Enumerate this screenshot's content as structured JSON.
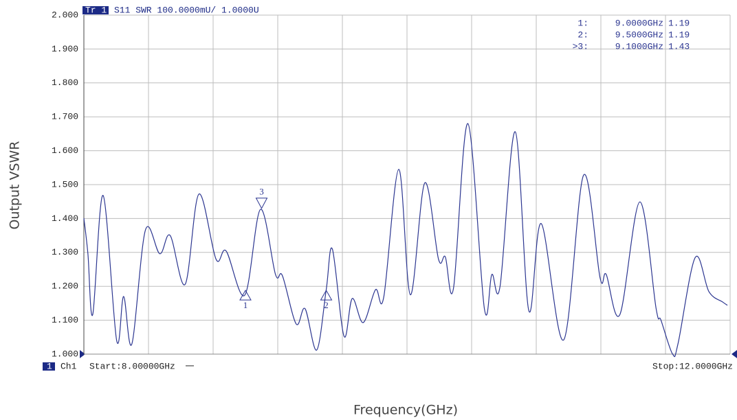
{
  "chart_data": {
    "type": "line",
    "header_trace": "Tr 1",
    "header": "S11 SWR 100.0000mU/ 1.0000U",
    "ylabel": "Output VSWR",
    "xlabel": "Frequency(GHz)",
    "channel_number": "1",
    "channel": "Ch1",
    "start_label": "Start:8.00000GHz",
    "stop_label": "Stop:12.0000GHz",
    "xlim": [
      8,
      12
    ],
    "xticks": [
      8,
      8.4,
      8.8,
      9.2,
      9.6,
      10,
      10.4,
      10.8,
      11.2,
      11.6,
      12
    ],
    "ylim": [
      1,
      2
    ],
    "yticks": [
      {
        "value": 1,
        "label": "1.000"
      },
      {
        "value": 1.1,
        "label": "1.100"
      },
      {
        "value": 1.2,
        "label": "1.200"
      },
      {
        "value": 1.3,
        "label": "1.300"
      },
      {
        "value": 1.4,
        "label": "1.400"
      },
      {
        "value": 1.5,
        "label": "1.500"
      },
      {
        "value": 1.6,
        "label": "1.600"
      },
      {
        "value": 1.7,
        "label": "1.700"
      },
      {
        "value": 1.8,
        "label": "1.800"
      },
      {
        "value": 1.9,
        "label": "1.900"
      },
      {
        "value": 2,
        "label": "2.000"
      }
    ],
    "grid": true,
    "series": [
      {
        "color": "#2b3590",
        "x": [
          8.0,
          8.025,
          8.055,
          8.119,
          8.203,
          8.246,
          8.297,
          8.381,
          8.47,
          8.534,
          8.627,
          8.712,
          8.818,
          8.881,
          8.996,
          9.093,
          9.186,
          9.229,
          9.314,
          9.369,
          9.441,
          9.5,
          9.538,
          9.61,
          9.661,
          9.729,
          9.805,
          9.856,
          9.949,
          10.021,
          10.11,
          10.195,
          10.237,
          10.288,
          10.377,
          10.479,
          10.525,
          10.576,
          10.67,
          10.754,
          10.831,
          10.97,
          11.093,
          11.195,
          11.233,
          11.318,
          11.441,
          11.542,
          11.572,
          11.644,
          11.678,
          11.784,
          11.869,
          11.953,
          11.983
        ],
        "values": [
          1.401,
          1.296,
          1.117,
          1.468,
          1.04,
          1.17,
          1.03,
          1.366,
          1.296,
          1.35,
          1.206,
          1.472,
          1.28,
          1.304,
          1.174,
          1.427,
          1.235,
          1.231,
          1.089,
          1.134,
          1.012,
          1.19,
          1.31,
          1.053,
          1.164,
          1.093,
          1.19,
          1.168,
          1.545,
          1.175,
          1.505,
          1.28,
          1.287,
          1.195,
          1.68,
          1.134,
          1.235,
          1.2,
          1.656,
          1.128,
          1.385,
          1.042,
          1.528,
          1.225,
          1.235,
          1.117,
          1.449,
          1.134,
          1.1,
          1.0,
          1.032,
          1.285,
          1.184,
          1.154,
          1.144
        ]
      }
    ],
    "markers": [
      {
        "name": "1",
        "id_label": "1:",
        "x": 9,
        "x_label": "9.0000GHz",
        "value": 1.19
      },
      {
        "name": "2",
        "id_label": "2:",
        "x": 9.5,
        "x_label": "9.5000GHz",
        "value": 1.19
      },
      {
        "name": "3",
        "id_label": ">3:",
        "x": 9.1,
        "x_label": "9.1000GHz",
        "value": 1.43
      }
    ]
  }
}
